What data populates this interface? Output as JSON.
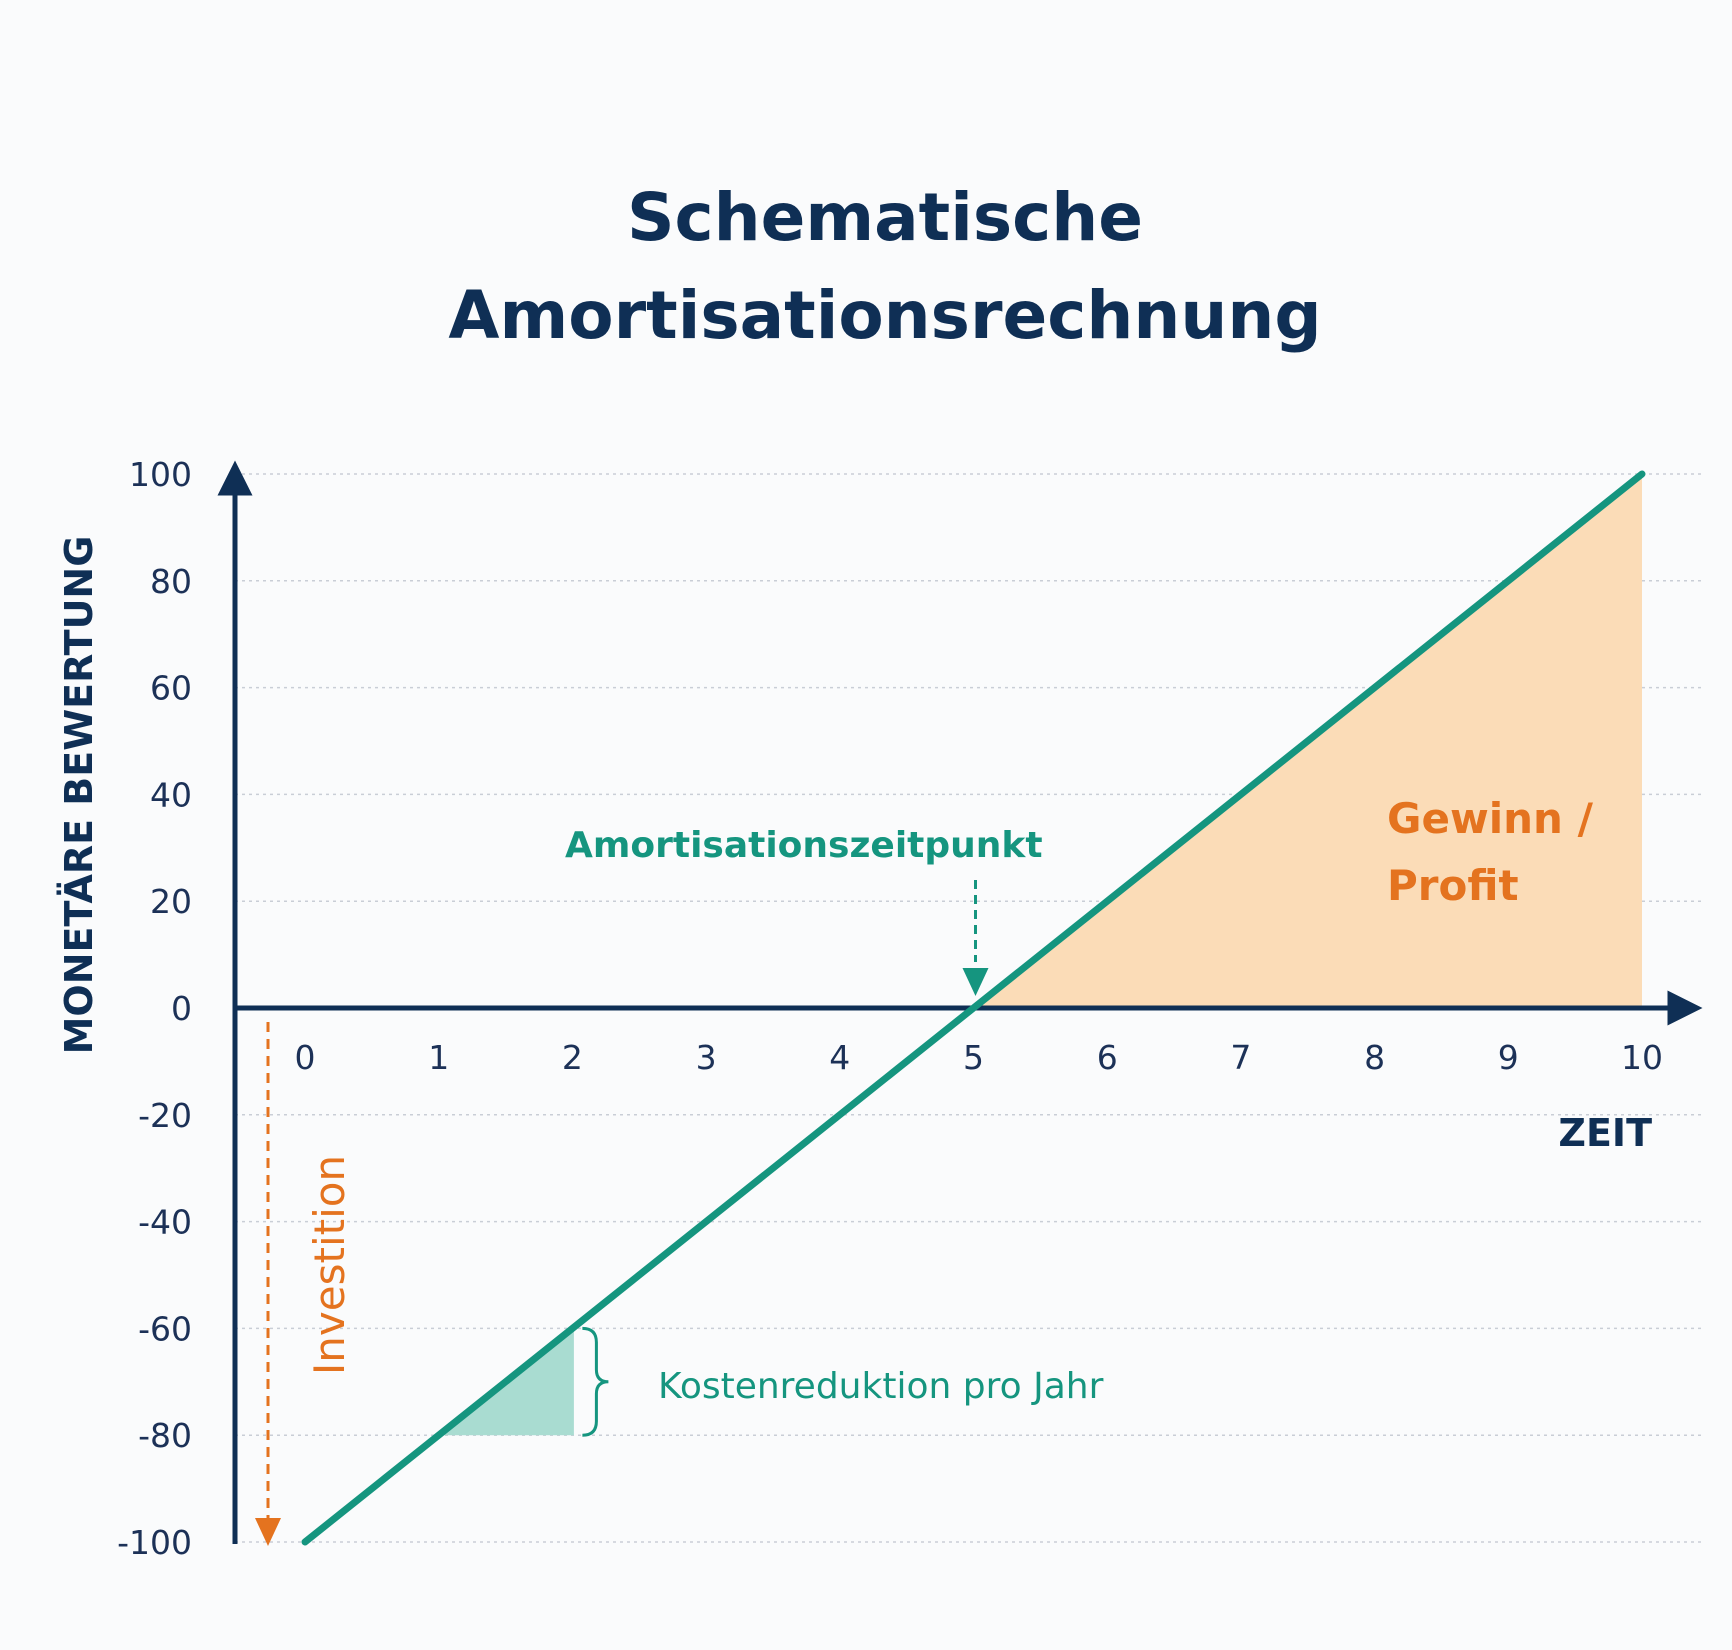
{
  "colors": {
    "navy": "#0f2f55",
    "line": "#15957f",
    "profit_fill": "#fbdcb7",
    "triangle_fill": "#a9dcd1",
    "orange": "#e4731f",
    "grid": "#c9ced6"
  },
  "chart_data": {
    "type": "line",
    "title_lines": [
      "Schematische",
      "Amortisationsrechnung"
    ],
    "xlabel": "ZEIT",
    "ylabel": "MONETÄRE BEWERTUNG",
    "xlim": [
      0,
      10
    ],
    "ylim": [
      -100,
      100
    ],
    "x_ticks": [
      0,
      1,
      2,
      3,
      4,
      5,
      6,
      7,
      8,
      9,
      10
    ],
    "y_ticks": [
      100,
      80,
      60,
      40,
      20,
      0,
      -20,
      -40,
      -60,
      -80,
      -100
    ],
    "grid": "horizontal dotted",
    "series": [
      {
        "x": [
          0,
          10
        ],
        "y": [
          -100,
          100
        ]
      }
    ],
    "annotations": {
      "payback": {
        "label": "Amortisationszeitpunkt",
        "x": 5,
        "y": 0
      },
      "profit": {
        "label_lines": [
          "Gewinn /",
          "Profit"
        ],
        "x_from": 5,
        "x_to": 10
      },
      "investment": {
        "label": "Investition",
        "y_from": 0,
        "y_to": -100
      },
      "cost_reduction": {
        "label": "Kostenreduktion pro Jahr",
        "x_from": 1,
        "x_to": 2,
        "y_from": -80,
        "y_to": -60
      }
    }
  }
}
